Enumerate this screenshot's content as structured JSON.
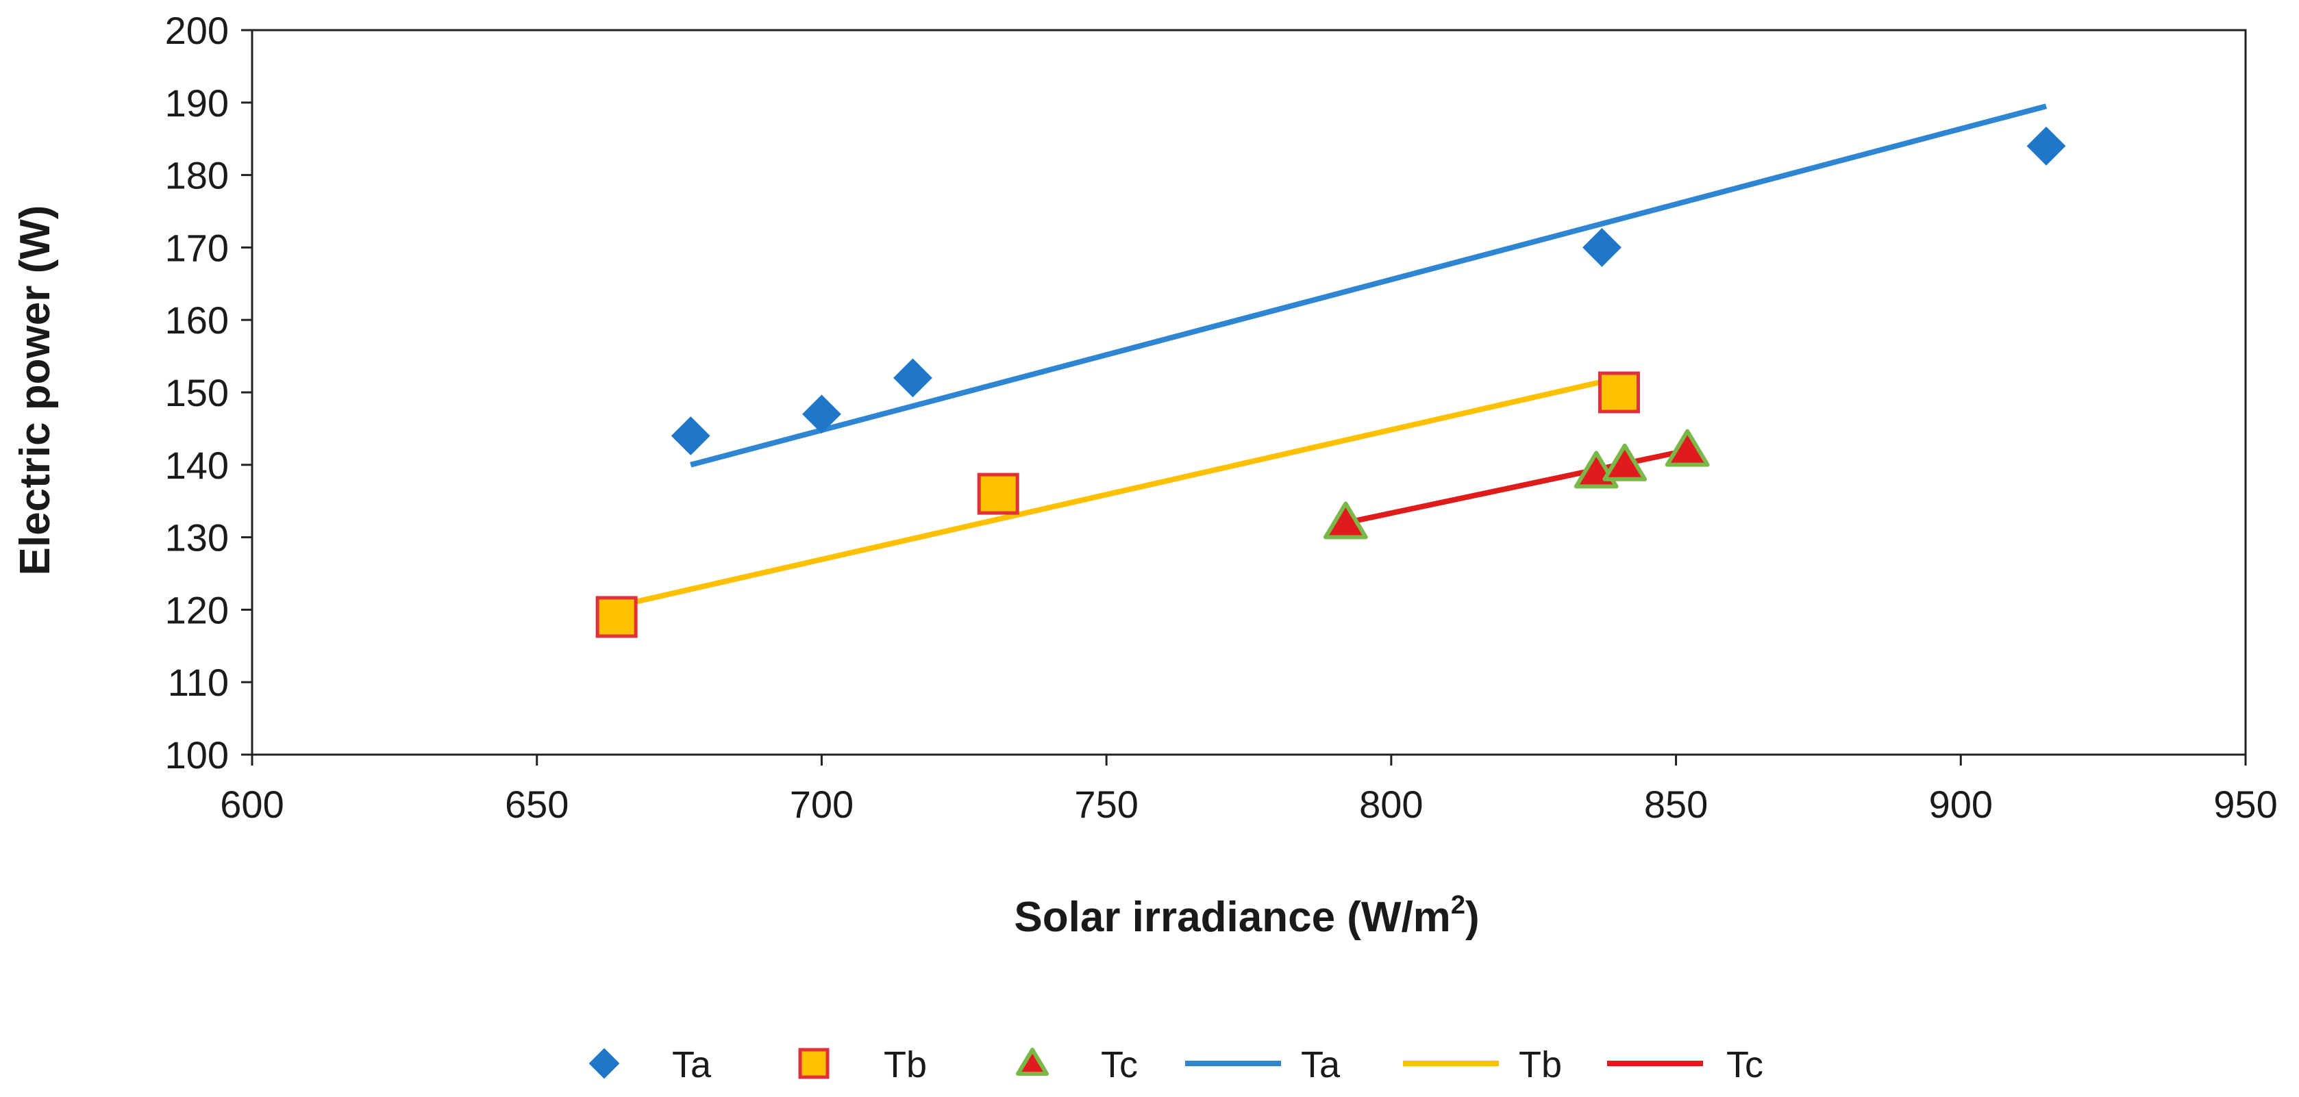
{
  "chart_data": {
    "type": "scatter",
    "title": "",
    "xlabel": "Solar irradiance (W/m",
    "xlabel_sup": "2",
    "xlabel_end": ")",
    "ylabel": "Electric power (W)",
    "xlim": [
      600,
      950
    ],
    "ylim": [
      100,
      200
    ],
    "x_ticks": [
      "600",
      "650",
      "700",
      "750",
      "800",
      "850",
      "900",
      "950"
    ],
    "y_ticks": [
      "100",
      "110",
      "120",
      "130",
      "140",
      "150",
      "160",
      "170",
      "180",
      "190",
      "200"
    ],
    "grid": false,
    "legend_position": "bottom",
    "series": [
      {
        "name": "Ta",
        "marker": "diamond",
        "color": "#1F77C9",
        "x": [
          677,
          700,
          716,
          837,
          915
        ],
        "y": [
          144,
          147,
          152,
          170,
          184
        ],
        "trendline": {
          "name": "Ta",
          "color": "#2E86D2",
          "x": [
            677,
            915
          ],
          "y": [
            140,
            189.5
          ]
        }
      },
      {
        "name": "Tb",
        "marker": "square",
        "color": "#FFC000",
        "edge_color": "#E0303A",
        "x": [
          664,
          731,
          840
        ],
        "y": [
          119,
          136,
          150
        ],
        "trendline": {
          "name": "Tb",
          "color": "#FFC000",
          "x": [
            664,
            840
          ],
          "y": [
            120.5,
            152
          ]
        }
      },
      {
        "name": "Tc",
        "marker": "triangle",
        "color": "#E01B1B",
        "edge_color": "#7BB84A",
        "x": [
          792,
          836,
          841,
          852
        ],
        "y": [
          132,
          139,
          140,
          142
        ],
        "trendline": {
          "name": "Tc",
          "color": "#E01B1B",
          "x": [
            792,
            852
          ],
          "y": [
            132,
            142
          ]
        }
      }
    ],
    "legend": [
      "Ta",
      "Tb",
      "Tc",
      "Ta",
      "Tb",
      "Tc"
    ]
  }
}
